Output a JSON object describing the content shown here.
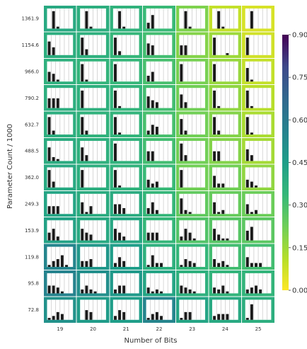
{
  "chart_data": {
    "type": "heatmap",
    "xlabel": "Number of Bits",
    "ylabel": "Parameter Count / 1000",
    "x_categories": [
      "19",
      "20",
      "21",
      "22",
      "23",
      "24",
      "25"
    ],
    "y_categories": [
      "1361.9",
      "1154.6",
      "966.0",
      "790.2",
      "632.7",
      "488.5",
      "362.0",
      "249.3",
      "153.9",
      "119.8",
      "95.8",
      "72.8"
    ],
    "colorbar": {
      "colormap": "viridis_r",
      "range": [
        0.0,
        0.9
      ],
      "ticks": [
        "0.00",
        "0.15",
        "0.30",
        "0.45",
        "0.60",
        "0.75",
        "0.90"
      ]
    },
    "values": [
      [
        0.4,
        0.38,
        0.36,
        0.33,
        0.2,
        0.09,
        0.06
      ],
      [
        0.38,
        0.37,
        0.34,
        0.31,
        0.19,
        0.15,
        0.07
      ],
      [
        0.37,
        0.35,
        0.34,
        0.3,
        0.21,
        0.16,
        0.09
      ],
      [
        0.38,
        0.37,
        0.35,
        0.31,
        0.22,
        0.17,
        0.11
      ],
      [
        0.38,
        0.36,
        0.35,
        0.3,
        0.22,
        0.19,
        0.13
      ],
      [
        0.39,
        0.37,
        0.36,
        0.31,
        0.22,
        0.19,
        0.14
      ],
      [
        0.4,
        0.38,
        0.36,
        0.33,
        0.22,
        0.22,
        0.17
      ],
      [
        0.42,
        0.39,
        0.39,
        0.34,
        0.25,
        0.24,
        0.23
      ],
      [
        0.43,
        0.4,
        0.41,
        0.34,
        0.28,
        0.27,
        0.26
      ],
      [
        0.55,
        0.48,
        0.45,
        0.37,
        0.34,
        0.31,
        0.31
      ],
      [
        0.56,
        0.51,
        0.47,
        0.42,
        0.37,
        0.35,
        0.35
      ],
      [
        0.5,
        0.46,
        0.45,
        0.55,
        0.42,
        0.4,
        0.38
      ]
    ],
    "inset_bars": [
      [
        [
          0.0,
          0.9,
          0.1,
          0.0,
          0.0,
          0.0
        ],
        [
          0.0,
          0.9,
          0.1,
          0.0,
          0.0,
          0.0
        ],
        [
          0.0,
          0.9,
          0.1,
          0.0,
          0.0,
          0.0
        ],
        [
          0.3,
          0.7,
          0.0,
          0.0,
          0.0,
          0.0
        ],
        [
          0.0,
          0.9,
          0.1,
          0.0,
          0.0,
          0.0
        ],
        [
          0.0,
          0.9,
          0.1,
          0.0,
          0.0,
          0.0
        ],
        [
          0.0,
          0.9,
          0.0,
          0.0,
          0.0,
          0.0
        ]
      ],
      [
        [
          0.7,
          0.4,
          0.0,
          0.0,
          0.0,
          0.0
        ],
        [
          0.9,
          0.3,
          0.0,
          0.0,
          0.0,
          0.0
        ],
        [
          0.9,
          0.2,
          0.0,
          0.0,
          0.0,
          0.0
        ],
        [
          0.6,
          0.5,
          0.0,
          0.0,
          0.0,
          0.0
        ],
        [
          0.5,
          0.5,
          0.0,
          0.0,
          0.0,
          0.0
        ],
        [
          0.9,
          0.0,
          0.0,
          0.1,
          0.0,
          0.0
        ],
        [
          0.9,
          0.0,
          0.0,
          0.0,
          0.0,
          0.0
        ]
      ],
      [
        [
          0.5,
          0.4,
          0.1,
          0.0,
          0.0,
          0.0
        ],
        [
          0.9,
          0.1,
          0.0,
          0.0,
          0.0,
          0.0
        ],
        [
          0.9,
          0.0,
          0.0,
          0.0,
          0.0,
          0.0
        ],
        [
          0.3,
          0.5,
          0.0,
          0.0,
          0.0,
          0.0
        ],
        [
          0.9,
          0.0,
          0.0,
          0.0,
          0.0,
          0.0
        ],
        [
          0.9,
          0.0,
          0.0,
          0.0,
          0.0,
          0.0
        ],
        [
          0.7,
          0.1,
          0.0,
          0.0,
          0.0,
          0.0
        ]
      ],
      [
        [
          0.5,
          0.5,
          0.5,
          0.0,
          0.0,
          0.0
        ],
        [
          0.9,
          0.0,
          0.0,
          0.0,
          0.0,
          0.0
        ],
        [
          0.9,
          0.1,
          0.0,
          0.0,
          0.0,
          0.0
        ],
        [
          0.6,
          0.4,
          0.3,
          0.0,
          0.0,
          0.0
        ],
        [
          0.7,
          0.3,
          0.0,
          0.0,
          0.0,
          0.0
        ],
        [
          0.9,
          0.1,
          0.0,
          0.0,
          0.0,
          0.0
        ],
        [
          0.9,
          0.1,
          0.0,
          0.0,
          0.0,
          0.0
        ]
      ],
      [
        [
          0.9,
          0.2,
          0.0,
          0.0,
          0.0,
          0.0
        ],
        [
          0.9,
          0.2,
          0.0,
          0.0,
          0.0,
          0.0
        ],
        [
          0.9,
          0.1,
          0.0,
          0.0,
          0.0,
          0.0
        ],
        [
          0.2,
          0.5,
          0.4,
          0.0,
          0.0,
          0.0
        ],
        [
          0.8,
          0.2,
          0.0,
          0.0,
          0.0,
          0.0
        ],
        [
          0.9,
          0.2,
          0.0,
          0.0,
          0.0,
          0.0
        ],
        [
          0.9,
          0.1,
          0.0,
          0.0,
          0.0,
          0.0
        ]
      ],
      [
        [
          0.7,
          0.2,
          0.1,
          0.0,
          0.0,
          0.0
        ],
        [
          0.7,
          0.3,
          0.0,
          0.0,
          0.0,
          0.0
        ],
        [
          0.9,
          0.0,
          0.0,
          0.0,
          0.0,
          0.0
        ],
        [
          0.5,
          0.5,
          0.0,
          0.0,
          0.0,
          0.0
        ],
        [
          0.9,
          0.3,
          0.0,
          0.0,
          0.0,
          0.0
        ],
        [
          0.5,
          0.5,
          0.0,
          0.0,
          0.0,
          0.0
        ],
        [
          0.6,
          0.3,
          0.0,
          0.0,
          0.0,
          0.0
        ]
      ],
      [
        [
          0.9,
          0.3,
          0.0,
          0.0,
          0.0,
          0.0
        ],
        [
          0.9,
          0.0,
          0.0,
          0.0,
          0.0,
          0.0
        ],
        [
          0.9,
          0.1,
          0.0,
          0.0,
          0.0,
          0.0
        ],
        [
          0.4,
          0.2,
          0.3,
          0.0,
          0.0,
          0.0
        ],
        [
          0.9,
          0.0,
          0.0,
          0.0,
          0.0,
          0.0
        ],
        [
          0.6,
          0.2,
          0.2,
          0.0,
          0.0,
          0.0
        ],
        [
          0.4,
          0.3,
          0.1,
          0.0,
          0.0,
          0.0
        ]
      ],
      [
        [
          0.4,
          0.4,
          0.4,
          0.0,
          0.0,
          0.0
        ],
        [
          0.6,
          0.1,
          0.4,
          0.0,
          0.0,
          0.0
        ],
        [
          0.5,
          0.5,
          0.3,
          0.0,
          0.0,
          0.0
        ],
        [
          0.3,
          0.6,
          0.2,
          0.0,
          0.0,
          0.0
        ],
        [
          0.8,
          0.2,
          0.1,
          0.0,
          0.0,
          0.0
        ],
        [
          0.6,
          0.1,
          0.2,
          0.0,
          0.0,
          0.0
        ],
        [
          0.5,
          0.1,
          0.2,
          0.0,
          0.0,
          0.0
        ]
      ],
      [
        [
          0.4,
          0.6,
          0.2,
          0.0,
          0.0,
          0.0
        ],
        [
          0.6,
          0.4,
          0.3,
          0.0,
          0.0,
          0.0
        ],
        [
          0.6,
          0.4,
          0.2,
          0.0,
          0.0,
          0.0
        ],
        [
          0.4,
          0.4,
          0.4,
          0.0,
          0.0,
          0.0
        ],
        [
          0.2,
          0.6,
          0.4,
          0.1,
          0.0,
          0.0
        ],
        [
          0.6,
          0.3,
          0.1,
          0.1,
          0.0,
          0.0
        ],
        [
          0.5,
          0.7,
          0.0,
          0.0,
          0.0,
          0.0
        ]
      ],
      [
        [
          0.1,
          0.3,
          0.4,
          0.6,
          0.1,
          0.0
        ],
        [
          0.3,
          0.3,
          0.4,
          0.0,
          0.0,
          0.0
        ],
        [
          0.2,
          0.5,
          0.3,
          0.0,
          0.0,
          0.0
        ],
        [
          0.1,
          0.6,
          0.2,
          0.2,
          0.0,
          0.0
        ],
        [
          0.1,
          0.4,
          0.3,
          0.2,
          0.0,
          0.0
        ],
        [
          0.4,
          0.2,
          0.3,
          0.1,
          0.0,
          0.0
        ],
        [
          0.5,
          0.2,
          0.2,
          0.2,
          0.0,
          0.0
        ]
      ],
      [
        [
          0.4,
          0.4,
          0.3,
          0.1,
          0.0,
          0.0
        ],
        [
          0.2,
          0.4,
          0.2,
          0.1,
          0.0,
          0.0
        ],
        [
          0.2,
          0.4,
          0.4,
          0.0,
          0.0,
          0.0
        ],
        [
          0.3,
          0.1,
          0.2,
          0.1,
          0.0,
          0.0
        ],
        [
          0.4,
          0.3,
          0.2,
          0.1,
          0.0,
          0.0
        ],
        [
          0.3,
          0.2,
          0.4,
          0.1,
          0.0,
          0.0
        ],
        [
          0.2,
          0.3,
          0.4,
          0.2,
          0.0,
          0.0
        ]
      ],
      [
        [
          0.1,
          0.2,
          0.4,
          0.3,
          0.0,
          0.0
        ],
        [
          0.0,
          0.5,
          0.4,
          0.0,
          0.0,
          0.0
        ],
        [
          0.2,
          0.5,
          0.4,
          0.0,
          0.0,
          0.0
        ],
        [
          0.1,
          0.3,
          0.4,
          0.2,
          0.0,
          0.0
        ],
        [
          0.1,
          0.4,
          0.4,
          0.0,
          0.0,
          0.0
        ],
        [
          0.2,
          0.3,
          0.3,
          0.3,
          0.0,
          0.0
        ],
        [
          0.1,
          0.8,
          0.0,
          0.0,
          0.0,
          0.0
        ]
      ]
    ]
  }
}
